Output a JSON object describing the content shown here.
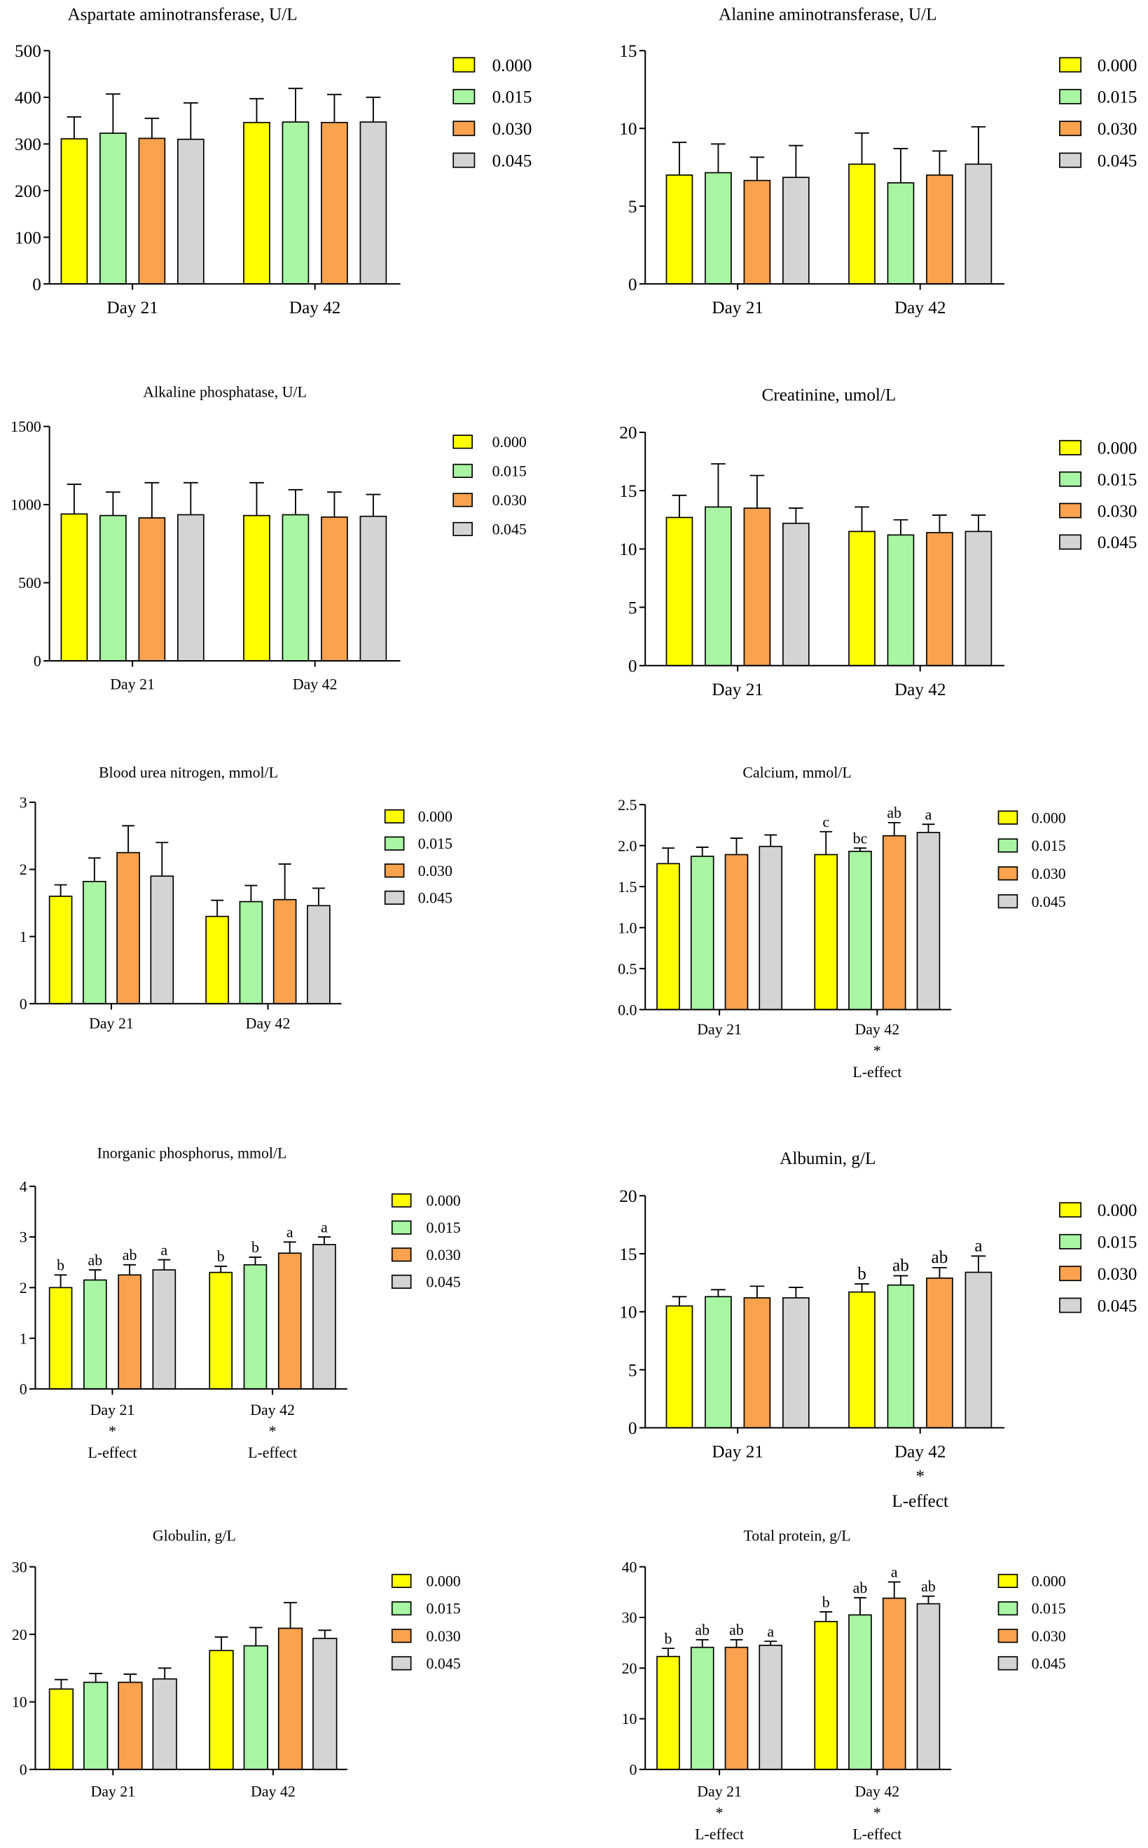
{
  "series_colors": [
    "#ffff00",
    "#a8f5a3",
    "#fba24e",
    "#d4d4d4"
  ],
  "chart_data": [
    {
      "type": "bar",
      "title": "Aspartate aminotransferase, U/L",
      "categories": [
        "Day 21",
        "Day 42"
      ],
      "ylim": [
        0,
        500
      ],
      "ytick_labels": [
        "0",
        "100",
        "200",
        "300",
        "400",
        "500"
      ],
      "series": [
        {
          "name": "0.000",
          "values": [
            311,
            346
          ],
          "errors": [
            47,
            51
          ]
        },
        {
          "name": "0.015",
          "values": [
            323,
            347
          ],
          "errors": [
            84,
            72
          ]
        },
        {
          "name": "0.030",
          "values": [
            312,
            346
          ],
          "errors": [
            43,
            60
          ]
        },
        {
          "name": "0.045",
          "values": [
            310,
            347
          ],
          "errors": [
            78,
            53
          ]
        }
      ]
    },
    {
      "type": "bar",
      "title": "Alanine aminotransferase, U/L",
      "categories": [
        "Day 21",
        "Day 42"
      ],
      "ylim": [
        0,
        15
      ],
      "ytick_labels": [
        "0",
        "5",
        "10",
        "15"
      ],
      "series": [
        {
          "name": "0.000",
          "values": [
            7.0,
            7.7
          ],
          "errors": [
            2.1,
            2.0
          ]
        },
        {
          "name": "0.015",
          "values": [
            7.15,
            6.5
          ],
          "errors": [
            1.85,
            2.2
          ]
        },
        {
          "name": "0.030",
          "values": [
            6.65,
            7.0
          ],
          "errors": [
            1.5,
            1.55
          ]
        },
        {
          "name": "0.045",
          "values": [
            6.85,
            7.7
          ],
          "errors": [
            2.05,
            2.4
          ]
        }
      ]
    },
    {
      "type": "bar",
      "title": "Alkaline phosphatase, U/L",
      "categories": [
        "Day 21",
        "Day 42"
      ],
      "ylim": [
        0,
        1500
      ],
      "ytick_labels": [
        "0",
        "500",
        "1000",
        "1500"
      ],
      "series": [
        {
          "name": "0.000",
          "values": [
            940,
            930
          ],
          "errors": [
            190,
            210
          ]
        },
        {
          "name": "0.015",
          "values": [
            930,
            935
          ],
          "errors": [
            150,
            160
          ]
        },
        {
          "name": "0.030",
          "values": [
            915,
            920
          ],
          "errors": [
            225,
            160
          ]
        },
        {
          "name": "0.045",
          "values": [
            935,
            925
          ],
          "errors": [
            205,
            140
          ]
        }
      ]
    },
    {
      "type": "bar",
      "title": "Creatinine, umol/L",
      "categories": [
        "Day 21",
        "Day 42"
      ],
      "ylim": [
        0,
        20
      ],
      "ytick_labels": [
        "0",
        "5",
        "10",
        "15",
        "20"
      ],
      "series": [
        {
          "name": "0.000",
          "values": [
            12.7,
            11.5
          ],
          "errors": [
            1.9,
            2.1
          ]
        },
        {
          "name": "0.015",
          "values": [
            13.6,
            11.2
          ],
          "errors": [
            3.7,
            1.3
          ]
        },
        {
          "name": "0.030",
          "values": [
            13.5,
            11.4
          ],
          "errors": [
            2.8,
            1.5
          ]
        },
        {
          "name": "0.045",
          "values": [
            12.2,
            11.5
          ],
          "errors": [
            1.3,
            1.4
          ]
        }
      ]
    },
    {
      "type": "bar",
      "title": "Blood urea nitrogen, mmol/L",
      "categories": [
        "Day 21",
        "Day 42"
      ],
      "ylim": [
        0,
        3
      ],
      "ytick_labels": [
        "0",
        "1",
        "2",
        "3"
      ],
      "series": [
        {
          "name": "0.000",
          "values": [
            1.6,
            1.3
          ],
          "errors": [
            0.17,
            0.24
          ]
        },
        {
          "name": "0.015",
          "values": [
            1.82,
            1.52
          ],
          "errors": [
            0.35,
            0.24
          ]
        },
        {
          "name": "0.030",
          "values": [
            2.25,
            1.55
          ],
          "errors": [
            0.4,
            0.53
          ]
        },
        {
          "name": "0.045",
          "values": [
            1.9,
            1.46
          ],
          "errors": [
            0.5,
            0.26
          ]
        }
      ]
    },
    {
      "type": "bar",
      "title": "Calcium, mmol/L",
      "categories": [
        "Day 21",
        "Day 42"
      ],
      "ylim": [
        0,
        2.5
      ],
      "ytick_labels": [
        "0.0",
        "0.5",
        "1.0",
        "1.5",
        "2.0",
        "2.5"
      ],
      "category_notes": [
        [],
        [
          "*",
          "L-effect"
        ]
      ],
      "series": [
        {
          "name": "0.000",
          "values": [
            1.78,
            1.89
          ],
          "errors": [
            0.19,
            0.28
          ],
          "letters": [
            null,
            "c"
          ]
        },
        {
          "name": "0.015",
          "values": [
            1.87,
            1.93
          ],
          "errors": [
            0.11,
            0.04
          ],
          "letters": [
            null,
            "bc"
          ]
        },
        {
          "name": "0.030",
          "values": [
            1.89,
            2.12
          ],
          "errors": [
            0.2,
            0.16
          ],
          "letters": [
            null,
            "ab"
          ]
        },
        {
          "name": "0.045",
          "values": [
            1.99,
            2.16
          ],
          "errors": [
            0.14,
            0.1
          ],
          "letters": [
            null,
            "a"
          ]
        }
      ]
    },
    {
      "type": "bar",
      "title": "Inorganic phosphorus, mmol/L",
      "categories": [
        "Day 21",
        "Day 42"
      ],
      "ylim": [
        0,
        4
      ],
      "ytick_labels": [
        "0",
        "1",
        "2",
        "3",
        "4"
      ],
      "category_notes": [
        [
          "*",
          "L-effect"
        ],
        [
          "*",
          "L-effect"
        ]
      ],
      "series": [
        {
          "name": "0.000",
          "values": [
            2.0,
            2.3
          ],
          "errors": [
            0.25,
            0.12
          ],
          "letters": [
            "b",
            "b"
          ]
        },
        {
          "name": "0.015",
          "values": [
            2.15,
            2.45
          ],
          "errors": [
            0.2,
            0.15
          ],
          "letters": [
            "ab",
            "b"
          ]
        },
        {
          "name": "0.030",
          "values": [
            2.25,
            2.68
          ],
          "errors": [
            0.2,
            0.22
          ],
          "letters": [
            "ab",
            "a"
          ]
        },
        {
          "name": "0.045",
          "values": [
            2.35,
            2.85
          ],
          "errors": [
            0.2,
            0.15
          ],
          "letters": [
            "a",
            "a"
          ]
        }
      ]
    },
    {
      "type": "bar",
      "title": "Albumin, g/L",
      "categories": [
        "Day 21",
        "Day 42"
      ],
      "ylim": [
        0,
        20
      ],
      "ytick_labels": [
        "0",
        "5",
        "10",
        "15",
        "20"
      ],
      "category_notes": [
        [],
        [
          "*",
          "L-effect"
        ]
      ],
      "series": [
        {
          "name": "0.000",
          "values": [
            10.5,
            11.7
          ],
          "errors": [
            0.8,
            0.7
          ],
          "letters": [
            null,
            "b"
          ]
        },
        {
          "name": "0.015",
          "values": [
            11.3,
            12.3
          ],
          "errors": [
            0.6,
            0.8
          ],
          "letters": [
            null,
            "ab"
          ]
        },
        {
          "name": "0.030",
          "values": [
            11.2,
            12.9
          ],
          "errors": [
            1.0,
            0.9
          ],
          "letters": [
            null,
            "ab"
          ]
        },
        {
          "name": "0.045",
          "values": [
            11.2,
            13.4
          ],
          "errors": [
            0.9,
            1.4
          ],
          "letters": [
            null,
            "a"
          ]
        }
      ]
    },
    {
      "type": "bar",
      "title": "Globulin, g/L",
      "categories": [
        "Day 21",
        "Day 42"
      ],
      "ylim": [
        0,
        30
      ],
      "ytick_labels": [
        "0",
        "10",
        "20",
        "30"
      ],
      "series": [
        {
          "name": "0.000",
          "values": [
            11.9,
            17.6
          ],
          "errors": [
            1.4,
            2.0
          ]
        },
        {
          "name": "0.015",
          "values": [
            12.9,
            18.3
          ],
          "errors": [
            1.3,
            2.7
          ]
        },
        {
          "name": "0.030",
          "values": [
            12.9,
            20.9
          ],
          "errors": [
            1.2,
            3.8
          ]
        },
        {
          "name": "0.045",
          "values": [
            13.4,
            19.4
          ],
          "errors": [
            1.6,
            1.2
          ]
        }
      ]
    },
    {
      "type": "bar",
      "title": "Total protein, g/L",
      "categories": [
        "Day 21",
        "Day 42"
      ],
      "ylim": [
        0,
        40
      ],
      "ytick_labels": [
        "0",
        "10",
        "20",
        "30",
        "40"
      ],
      "category_notes": [
        [
          "*",
          "L-effect"
        ],
        [
          "*",
          "L-effect"
        ]
      ],
      "series": [
        {
          "name": "0.000",
          "values": [
            22.3,
            29.2
          ],
          "errors": [
            1.6,
            1.9
          ],
          "letters": [
            "b",
            "b"
          ]
        },
        {
          "name": "0.015",
          "values": [
            24.1,
            30.5
          ],
          "errors": [
            1.5,
            3.4
          ],
          "letters": [
            "ab",
            "ab"
          ]
        },
        {
          "name": "0.030",
          "values": [
            24.1,
            33.8
          ],
          "errors": [
            1.5,
            3.2
          ],
          "letters": [
            "ab",
            "a"
          ]
        },
        {
          "name": "0.045",
          "values": [
            24.5,
            32.7
          ],
          "errors": [
            0.8,
            1.5
          ],
          "letters": [
            "a",
            "ab"
          ]
        }
      ]
    }
  ]
}
